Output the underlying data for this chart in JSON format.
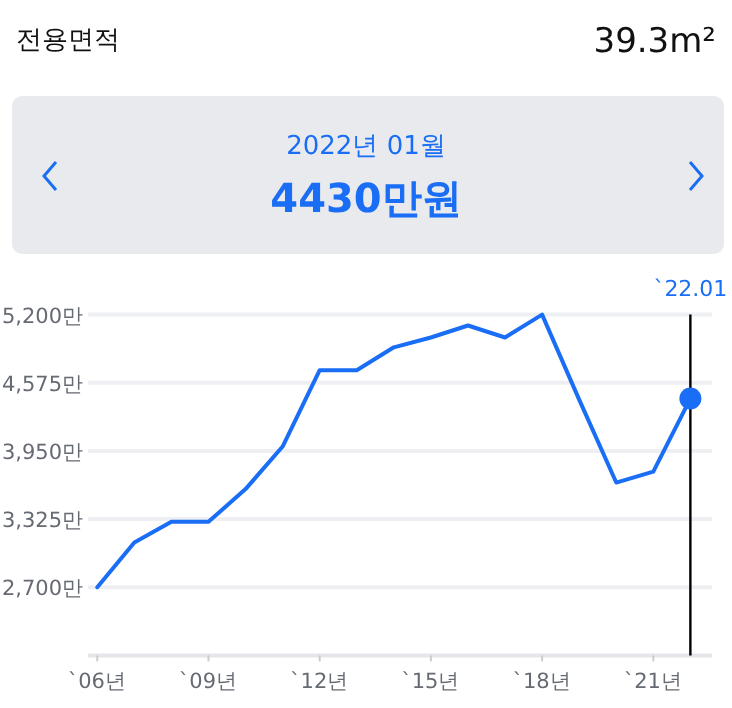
{
  "chart_data": {
    "type": "line",
    "annotations": [
      "전용면적",
      "39.3m²",
      "2022년 01월",
      "4430만원"
    ],
    "x": [
      "2006",
      "2007",
      "2008",
      "2009",
      "2010",
      "2011",
      "2012",
      "2013",
      "2014",
      "2015",
      "2016",
      "2017",
      "2018",
      "2019",
      "2020",
      "2021",
      "2022-01"
    ],
    "series": [
      {
        "color": "#1a6ef5",
        "values": [
          2700,
          3110,
          3300,
          3300,
          3600,
          3990,
          4690,
          4690,
          4900,
          4990,
          5100,
          4990,
          5200,
          4420,
          3660,
          3760,
          4430
        ]
      },
      {
        "type": "scatter",
        "marker": "circle",
        "color": "#1a6ef5",
        "x": [
          "2022-01"
        ],
        "values": [
          4430
        ]
      }
    ],
    "xlim": [
      "2005-10",
      "2022-08"
    ],
    "xticks": [
      {
        "value": "2006",
        "label": "`06년"
      },
      {
        "value": "2009",
        "label": "`09년"
      },
      {
        "value": "2012",
        "label": "`12년"
      },
      {
        "value": "2015",
        "label": "`15년"
      },
      {
        "value": "2018",
        "label": "`18년"
      },
      {
        "value": "2021",
        "label": "`21년"
      }
    ],
    "ylim": [
      2075,
      5200
    ],
    "yticks": [
      {
        "value": 2700,
        "label": "2,700만"
      },
      {
        "value": 3325,
        "label": "3,325만"
      },
      {
        "value": 3950,
        "label": "3,950만"
      },
      {
        "value": 4575,
        "label": "4,575만"
      },
      {
        "value": 5200,
        "label": "5,200만"
      }
    ],
    "ref_lines": [
      {
        "axis": "x",
        "value": "2022-01",
        "label": "`22.01",
        "color": "#000000"
      }
    ],
    "grid": "y",
    "marker": "none"
  }
}
